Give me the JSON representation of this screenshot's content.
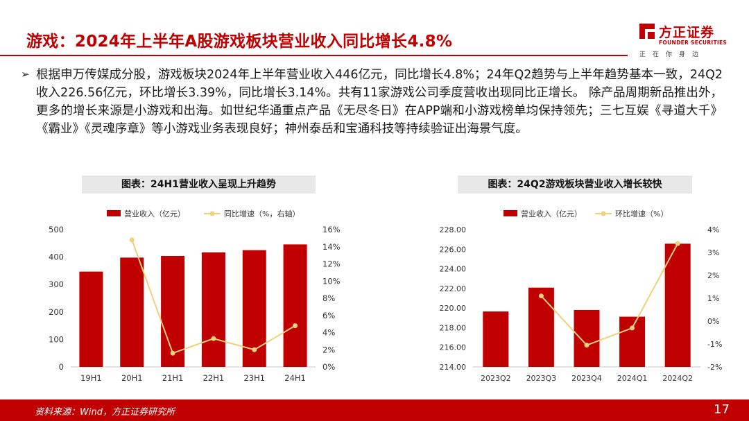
{
  "header": {
    "title": "游戏：2024年上半年A股游戏板块营业收入同比增长4.8%"
  },
  "brand": {
    "name": "方正证券",
    "name_en": "FOUNDER SECURITIES",
    "slogan": "正在你身边",
    "color": "#c00000"
  },
  "bullet": {
    "icon": "arrow-right-icon",
    "text": "根据申万传媒成分股，游戏板块2024年上半年营业收入446亿元，同比增长4.8%；24年Q2趋势与上半年趋势基本一致，24Q2收入226.56亿元，环比增长3.39%，同比增长3.14%。共有11家游戏公司季度营收出现同比正增长。 除产品周期新品推出外，更多的增长来源是小游戏和出海。如世纪华通重点产品《无尽冬日》在APP端和小游戏榜单均保持领先；三七互娱《寻道大千》《霸业》《灵魂序章》等小游戏业务表现良好；神州泰岳和宝通科技等持续验证出海景气度。"
  },
  "chart_data": [
    {
      "type": "bar",
      "title": "图表：24H1营业收入呈现上升趋势",
      "categories": [
        "19H1",
        "20H1",
        "21H1",
        "22H1",
        "23H1",
        "24H1"
      ],
      "series": [
        {
          "name": "营业收入（亿元）",
          "type": "bar",
          "axis": "left",
          "color": "#c00000",
          "values": [
            347,
            398,
            404,
            417,
            425,
            446
          ]
        },
        {
          "name": "同比增速（%，右轴）",
          "type": "line",
          "axis": "right",
          "color": "#f0d07a",
          "values": [
            null,
            14.8,
            1.6,
            3.3,
            2.0,
            4.8
          ]
        }
      ],
      "ylim": [
        0,
        500
      ],
      "y_ticks": [
        "0",
        "100",
        "200",
        "300",
        "400",
        "500"
      ],
      "y2lim": [
        0,
        16
      ],
      "y2_ticks": [
        "0%",
        "2%",
        "4%",
        "6%",
        "8%",
        "10%",
        "12%",
        "14%",
        "16%"
      ],
      "legend": "top",
      "grid": false
    },
    {
      "type": "bar",
      "title": "图表：24Q2游戏板块营业收入增长较快",
      "categories": [
        "2023Q2",
        "2023Q3",
        "2023Q4",
        "2024Q1",
        "2024Q2"
      ],
      "series": [
        {
          "name": "营业收入（亿元）",
          "type": "bar",
          "axis": "left",
          "color": "#c00000",
          "values": [
            219.65,
            222.08,
            219.8,
            219.12,
            226.56
          ]
        },
        {
          "name": "环比增速（%）",
          "type": "line",
          "axis": "right",
          "color": "#f0d07a",
          "values": [
            null,
            1.1,
            -1.05,
            -0.3,
            3.39
          ]
        }
      ],
      "ylim": [
        214,
        228
      ],
      "y_ticks": [
        "214.00",
        "216.00",
        "218.00",
        "220.00",
        "222.00",
        "224.00",
        "226.00",
        "228.00"
      ],
      "y2lim": [
        -2,
        4
      ],
      "y2_ticks": [
        "-2%",
        "-1%",
        "0%",
        "1%",
        "2%",
        "3%",
        "4%"
      ],
      "legend": "top",
      "grid": false
    }
  ],
  "footer": {
    "source": "资料来源：Wind，方正证券研究所",
    "page": "17"
  }
}
